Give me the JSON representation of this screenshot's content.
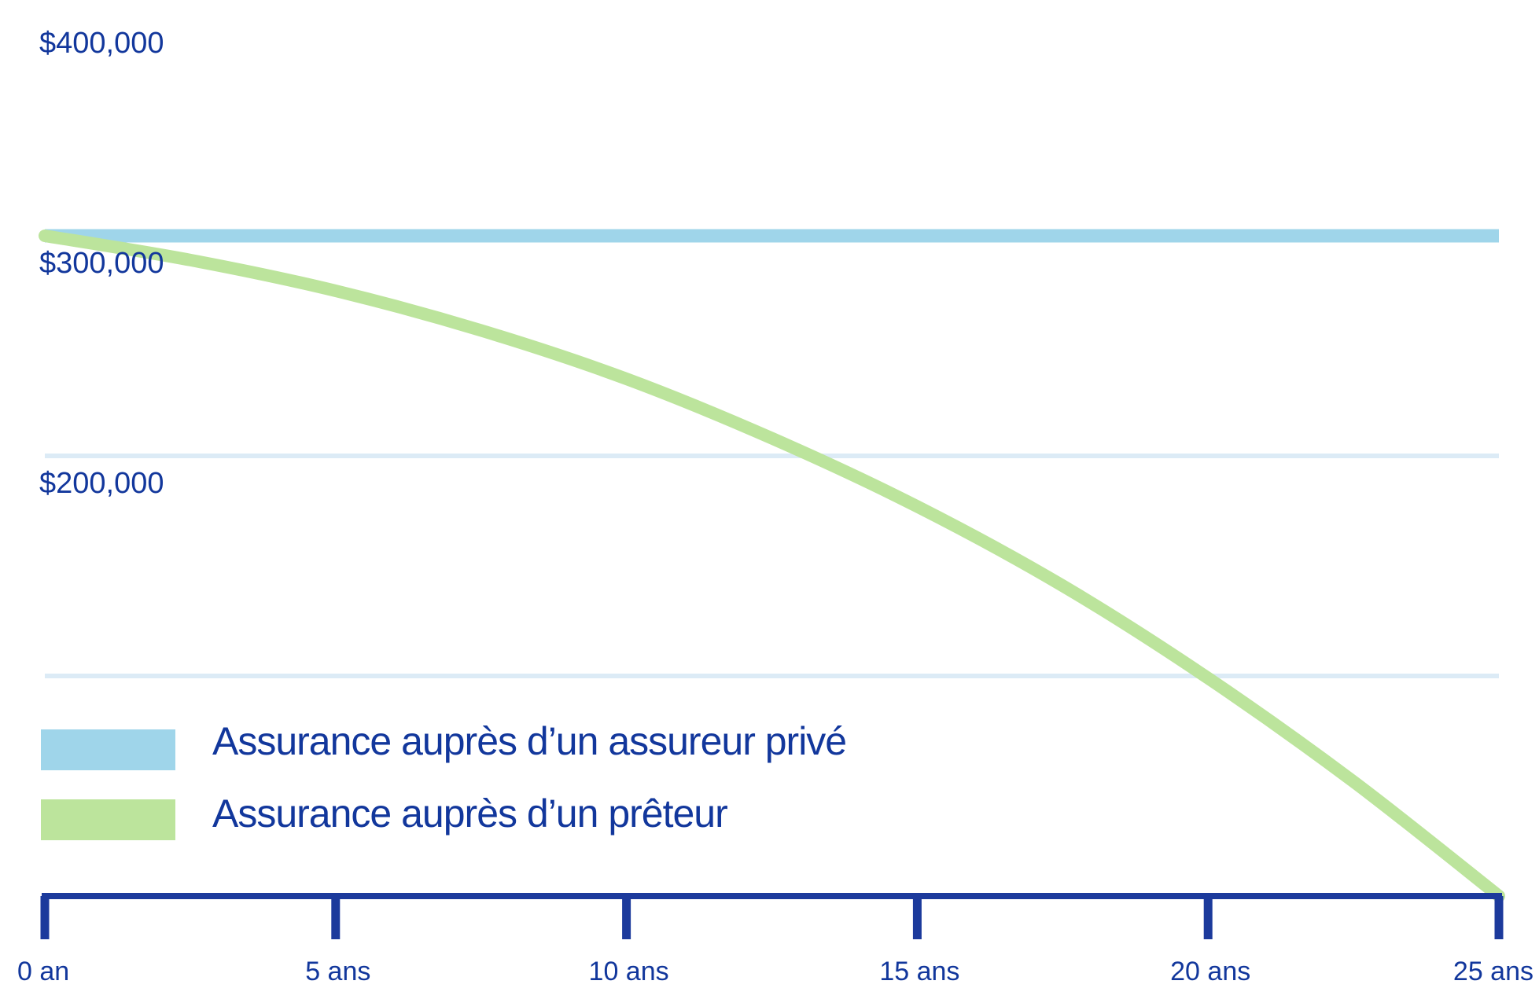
{
  "colors": {
    "primary_text": "#12379c",
    "axis": "#1c3a9c",
    "gridline": "#dcebf6",
    "private_series": "#9fd5ea",
    "lender_series": "#bce49c"
  },
  "chart_data": {
    "type": "line",
    "ylim": [
      0,
      420000
    ],
    "y_ticks": [
      {
        "value": 400000,
        "label": "$400,000"
      },
      {
        "value": 300000,
        "label": "$300,000"
      },
      {
        "value": 200000,
        "label": "$200,000"
      }
    ],
    "y_gridlines": [
      100000,
      200000,
      300000,
      420000
    ],
    "x": [
      0,
      5,
      10,
      15,
      20,
      25
    ],
    "x_tick_labels": [
      "0 an",
      "5 ans",
      "10 ans",
      "15 ans",
      "20 ans",
      "25 ans"
    ],
    "xlim": [
      0,
      25
    ],
    "grid": true,
    "legend_position": "bottom-left",
    "series": [
      {
        "name": "Assurance auprès d’un assureur privé",
        "color": "#9fd5ea",
        "x": [
          0,
          25
        ],
        "y": [
          300000,
          300000
        ]
      },
      {
        "name": "Assurance auprès d’un prêteur",
        "color": "#bce49c",
        "x": [
          0,
          2.5,
          5,
          7.5,
          10,
          12.5,
          15,
          17.5,
          20,
          22.5,
          25
        ],
        "y": [
          300000,
          289000,
          275000,
          257000,
          235000,
          208000,
          177000,
          141000,
          99000,
          52000,
          0
        ]
      }
    ]
  }
}
